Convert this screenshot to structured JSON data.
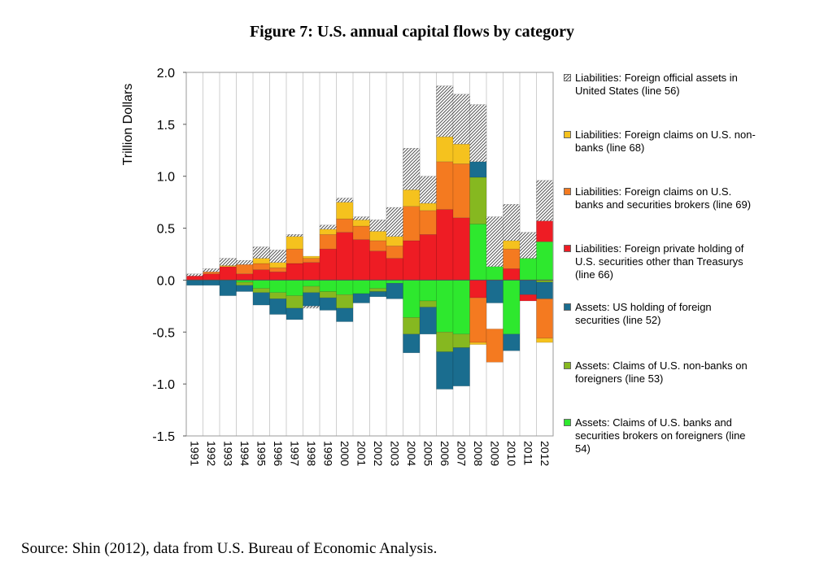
{
  "figure_title": "Figure 7: U.S. annual capital flows by category",
  "source_text": "Source: Shin (2012), data from U.S. Bureau of Economic Analysis.",
  "chart_data": {
    "type": "bar",
    "stacked": true,
    "title": "Figure 7: U.S. annual capital flows by category",
    "xlabel": "",
    "ylabel": "Trillion Dollars",
    "ylim": [
      -1.5,
      2.0
    ],
    "yticks": [
      -1.5,
      -1.0,
      -0.5,
      0.0,
      0.5,
      1.0,
      1.5,
      2.0
    ],
    "ytick_labels": [
      "-1.5",
      "-1.0",
      "-0.5",
      "0.0",
      "0.5",
      "1.0",
      "1.5",
      "2.0"
    ],
    "grid": "vertical",
    "legend_position": "right",
    "categories": [
      "1991",
      "1992",
      "1993",
      "1994",
      "1995",
      "1996",
      "1997",
      "1998",
      "1999",
      "2000",
      "2001",
      "2002",
      "2003",
      "2004",
      "2005",
      "2006",
      "2007",
      "2008",
      "2009",
      "2010",
      "2011",
      "2012"
    ],
    "series": [
      {
        "name": "Liabilities: Foreign official assets in United States (line 56)",
        "color": "#d0d0d0",
        "pattern": "hatch",
        "values": [
          0.02,
          0.03,
          0.07,
          0.04,
          0.11,
          0.12,
          0.02,
          -0.02,
          0.04,
          0.04,
          0.03,
          0.11,
          0.28,
          0.4,
          0.26,
          0.49,
          0.48,
          0.55,
          0.48,
          0.35,
          0.25,
          0.39
        ]
      },
      {
        "name": "Liabilities: Foreign claims on U.S. non-banks (line 68)",
        "color": "#f5c21e",
        "values": [
          0.0,
          0.0,
          0.01,
          0.0,
          0.05,
          0.05,
          0.12,
          0.02,
          0.05,
          0.16,
          0.06,
          0.09,
          0.09,
          0.16,
          0.07,
          0.24,
          0.19,
          0.0,
          0.0,
          0.08,
          0.0,
          0.0
        ]
      },
      {
        "name": "Liabilities: Foreign claims on U.S. banks and securities brokers (line 69)",
        "color": "#f47a20",
        "values": [
          0.0,
          0.02,
          0.0,
          0.09,
          0.06,
          0.04,
          0.14,
          0.04,
          0.14,
          0.13,
          0.13,
          0.1,
          0.12,
          0.33,
          0.23,
          0.46,
          0.52,
          0.0,
          0.0,
          0.19,
          0.0,
          0.0
        ]
      },
      {
        "name": "Liabilities: Foreign private holding of U.S. securities other than Treasurys (line 66)",
        "color": "#ee1c24",
        "values": [
          0.04,
          0.06,
          0.13,
          0.06,
          0.1,
          0.08,
          0.16,
          0.17,
          0.3,
          0.46,
          0.39,
          0.28,
          0.21,
          0.38,
          0.44,
          0.68,
          0.6,
          -0.17,
          0.0,
          0.11,
          0.0,
          0.2
        ]
      },
      {
        "name": "Assets: US holding of foreign securities (line 52)",
        "color": "#1a6d8f",
        "values": [
          -0.05,
          -0.05,
          -0.15,
          -0.06,
          -0.12,
          -0.15,
          -0.11,
          -0.13,
          -0.12,
          -0.13,
          -0.09,
          -0.05,
          -0.15,
          -0.18,
          -0.26,
          -0.36,
          -0.37,
          0.15,
          -0.22,
          -0.16,
          -0.14,
          -0.16
        ]
      },
      {
        "name": "Assets: Claims of U.S. non-banks on foreigners (line 53)",
        "color": "#86b820",
        "values": [
          0.0,
          0.0,
          0.0,
          -0.03,
          -0.04,
          -0.06,
          -0.12,
          -0.06,
          -0.06,
          -0.13,
          0.0,
          -0.03,
          0.0,
          -0.16,
          -0.06,
          -0.19,
          -0.13,
          0.45,
          0.0,
          0.0,
          0.0,
          -0.02
        ]
      },
      {
        "name": "Assets: Claims of U.S. banks and securities brokers on foreigners (line 54)",
        "color": "#2ee82e",
        "values": [
          0.0,
          0.0,
          0.0,
          -0.02,
          -0.08,
          -0.12,
          -0.15,
          -0.06,
          -0.11,
          -0.14,
          -0.13,
          -0.08,
          -0.03,
          -0.36,
          -0.2,
          -0.5,
          -0.52,
          0.54,
          0.13,
          -0.52,
          0.21,
          0.37
        ]
      }
    ],
    "overlay_negative": [
      {
        "category": "2008",
        "name": "Liabilities: Foreign claims on U.S. banks and securities brokers (line 69)",
        "from": -0.17,
        "to": -0.6,
        "color": "#f47a20"
      },
      {
        "category": "2008",
        "name": "Liabilities: Foreign claims on U.S. non-banks (line 68)",
        "from": -0.6,
        "to": -0.62,
        "color": "#f5c21e"
      },
      {
        "category": "2009",
        "name": "Liabilities: Foreign claims on U.S. banks and securities brokers (line 69)",
        "from": -0.47,
        "to": -0.79,
        "color": "#f47a20"
      },
      {
        "category": "2011",
        "name": "Liabilities: Foreign private holding of U.S. securities other than Treasurys (line 66)",
        "from": -0.14,
        "to": -0.2,
        "color": "#ee1c24"
      },
      {
        "category": "2012",
        "name": "Liabilities: Foreign claims on U.S. banks and securities brokers (line 69)",
        "from": -0.18,
        "to": -0.56,
        "color": "#f47a20"
      },
      {
        "category": "2012",
        "name": "Liabilities: Foreign claims on U.S. non-banks (line 68)",
        "from": -0.56,
        "to": -0.6,
        "color": "#f5c21e"
      }
    ]
  },
  "legend": [
    {
      "label": "Liabilities: Foreign official assets in United States (line 56)",
      "color": "#d0d0d0"
    },
    {
      "label": "Liabilities: Foreign claims on U.S. non-banks (line 68)",
      "color": "#f5c21e"
    },
    {
      "label": "Liabilities: Foreign claims on U.S. banks and securities brokers (line 69)",
      "color": "#f47a20"
    },
    {
      "label": "Liabilities: Foreign private holding of U.S. securities other than Treasurys (line 66)",
      "color": "#ee1c24"
    },
    {
      "label": "Assets: US holding of foreign securities (line 52)",
      "color": "#1a6d8f"
    },
    {
      "label": "Assets: Claims of U.S. non-banks on foreigners (line 53)",
      "color": "#86b820"
    },
    {
      "label": "Assets: Claims of U.S. banks and securities brokers on foreigners (line 54)",
      "color": "#2ee82e"
    }
  ]
}
